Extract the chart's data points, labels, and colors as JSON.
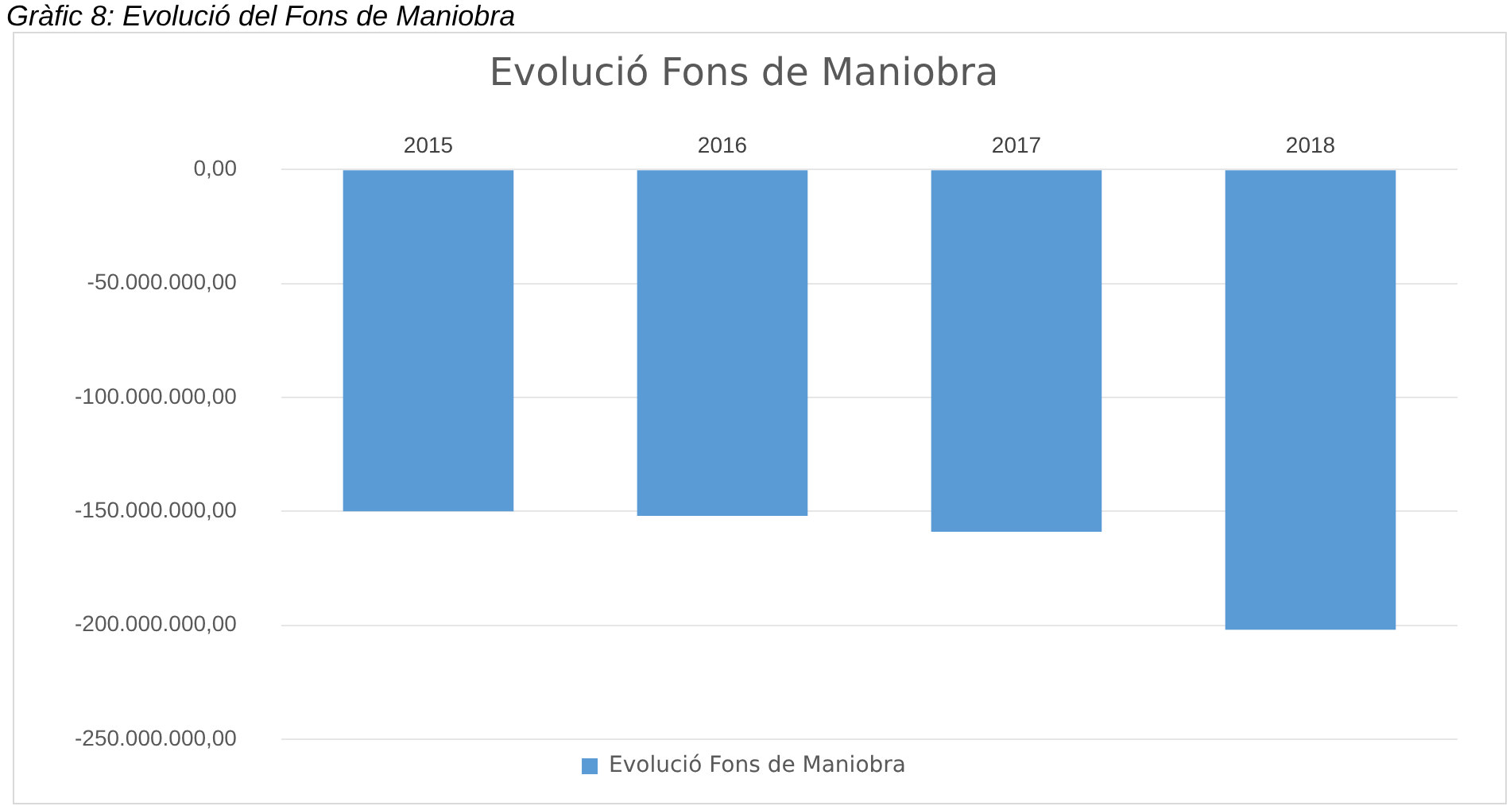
{
  "chart_data": {
    "type": "bar",
    "title": "Evolució Fons de Maniobra",
    "annotations": [
      "Gràfic 8: Evolució del Fons de Maniobra"
    ],
    "categories": [
      "2015",
      "2016",
      "2017",
      "2018"
    ],
    "series": [
      {
        "name": "Evolució Fons de Maniobra",
        "color": "#5b9bd5",
        "values": [
          -150000000,
          -152000000,
          -159000000,
          -202000000
        ]
      }
    ],
    "ylim": [
      -250000000,
      0
    ],
    "yticks": [
      {
        "value": 0,
        "label": "0,00"
      },
      {
        "value": -50000000,
        "label": "-50.000.000,00"
      },
      {
        "value": -100000000,
        "label": "-100.000.000,00"
      },
      {
        "value": -150000000,
        "label": "-150.000.000,00"
      },
      {
        "value": -200000000,
        "label": "-200.000.000,00"
      },
      {
        "value": -250000000,
        "label": "-250.000.000,00"
      }
    ],
    "grid": "y",
    "legend": "bottom"
  }
}
